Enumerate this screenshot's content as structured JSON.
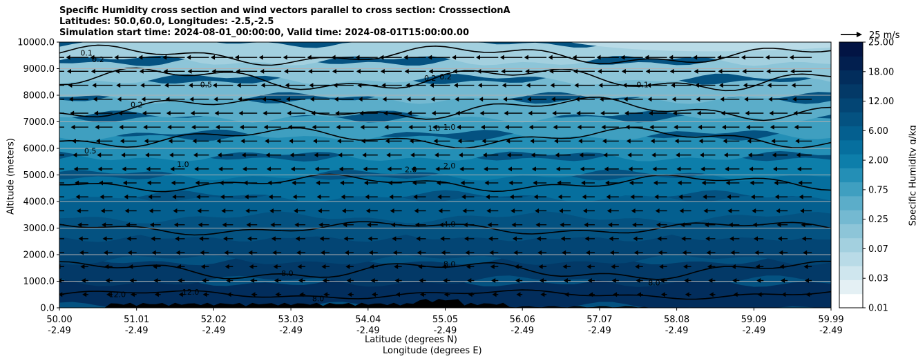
{
  "titles": {
    "line1": "Specific Humidity cross section and wind vectors parallel to cross section: CrosssectionA",
    "line2": "Latitudes: 50.0,60.0, Longitudes: -2.5,-2.5",
    "line3": "Simulation start time: 2024-08-01_00:00:00, Valid time: 2024-08-01T15:00:00.00"
  },
  "chart_data": {
    "type": "heatmap",
    "title": "Specific Humidity cross section and wind vectors parallel to cross section: CrosssectionA",
    "xlabel": "Latitude (degrees N)",
    "xlabel2": "Longitude (degrees E)",
    "ylabel": "Altitude (meters)",
    "ylim": [
      0,
      10000
    ],
    "yticks": [
      "0.0",
      "1000.0",
      "2000.0",
      "3000.0",
      "4000.0",
      "5000.0",
      "6000.0",
      "7000.0",
      "8000.0",
      "9000.0",
      "10000.0"
    ],
    "xticks_lat": [
      "50.00",
      "51.01",
      "52.02",
      "53.03",
      "54.04",
      "55.05",
      "56.06",
      "57.07",
      "58.08",
      "59.09",
      "59.99"
    ],
    "xticks_lon": [
      "-2.49",
      "-2.49",
      "-2.49",
      "-2.49",
      "-2.49",
      "-2.49",
      "-2.49",
      "-2.49",
      "-2.49",
      "-2.49",
      "-2.49"
    ],
    "grid": "horizontal",
    "colorbar": {
      "label": "Specific Humidity g/kg",
      "ticks": [
        "0.01",
        "0.03",
        "0.07",
        "0.25",
        "0.75",
        "2.00",
        "6.00",
        "12.00",
        "18.00",
        "25.00"
      ],
      "colors": [
        "#ffffff",
        "#e4f0f4",
        "#cfe6ee",
        "#b9dbe7",
        "#a3d0df",
        "#8dc5d8",
        "#74b9d1",
        "#5badc9",
        "#3f9fc0",
        "#248fb6",
        "#0d7eaa",
        "#066f9e",
        "#045f8f",
        "#045281",
        "#034574",
        "#033967",
        "#022d5c",
        "#021f4f",
        "#021444"
      ]
    },
    "contour_levels": [
      0.1,
      0.2,
      0.5,
      1.0,
      2.0,
      4.0,
      8.0,
      12.0
    ],
    "contour_labels": [
      {
        "text": "0.1",
        "x": 50.35,
        "y": 9500
      },
      {
        "text": "0.2",
        "x": 50.5,
        "y": 9250
      },
      {
        "text": "0.2",
        "x": 51.0,
        "y": 7550
      },
      {
        "text": "0.5",
        "x": 51.9,
        "y": 8300
      },
      {
        "text": "0.2",
        "x": 54.8,
        "y": 8550
      },
      {
        "text": "0.2",
        "x": 55.0,
        "y": 8600
      },
      {
        "text": "0.1",
        "x": 57.55,
        "y": 8300
      },
      {
        "text": "0.5",
        "x": 50.4,
        "y": 5800
      },
      {
        "text": "1.0",
        "x": 51.6,
        "y": 5300
      },
      {
        "text": "1.0",
        "x": 54.85,
        "y": 6650
      },
      {
        "text": "1.0",
        "x": 55.05,
        "y": 6700
      },
      {
        "text": "2.0",
        "x": 54.55,
        "y": 5100
      },
      {
        "text": "2.0",
        "x": 55.05,
        "y": 5250
      },
      {
        "text": "4.0",
        "x": 55.05,
        "y": 3050
      },
      {
        "text": "8.0",
        "x": 52.95,
        "y": 1200
      },
      {
        "text": "8.0",
        "x": 55.05,
        "y": 1550
      },
      {
        "text": "8.0",
        "x": 57.7,
        "y": 850
      },
      {
        "text": "12.0",
        "x": 50.75,
        "y": 400
      },
      {
        "text": "12.0",
        "x": 51.7,
        "y": 500
      },
      {
        "text": "8.0",
        "x": 53.35,
        "y": 250
      }
    ],
    "wind_key": {
      "label": "25 m/s",
      "speed": 25
    },
    "wind_direction": "southward (pointing toward lower latitude) at all levels"
  }
}
